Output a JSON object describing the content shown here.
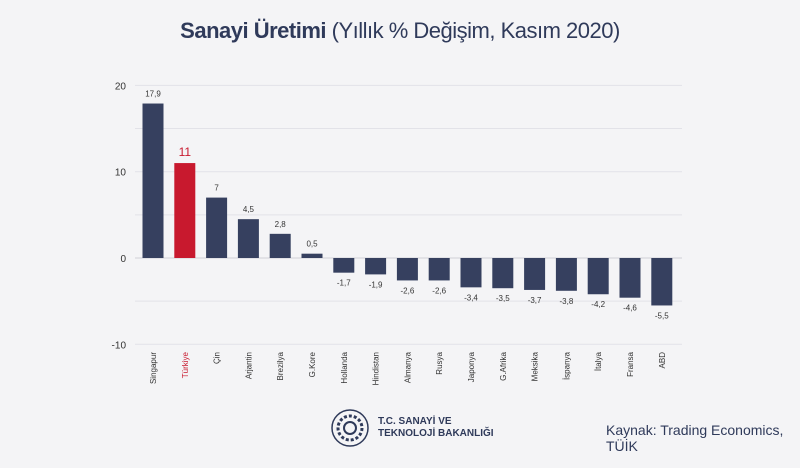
{
  "chart_data": {
    "type": "bar",
    "title": "Sanayi Üretimi",
    "subtitle": "(Yıllık % Değişim, Kasım 2020)",
    "categories": [
      "Singapur",
      "Türkiye",
      "Çin",
      "Arjantin",
      "Brezilya",
      "G.Kore",
      "Hollanda",
      "Hindistan",
      "Almanya",
      "Rusya",
      "Japonya",
      "G.Afrika",
      "Meksika",
      "İspanya",
      "İtalya",
      "Fransa",
      "ABD"
    ],
    "values": [
      17.9,
      11,
      7,
      4.5,
      2.8,
      0.5,
      -1.7,
      -1.9,
      -2.6,
      -2.6,
      -3.4,
      -3.5,
      -3.7,
      -3.8,
      -4.2,
      -4.6,
      -5.5
    ],
    "labels": [
      "17,9",
      "11",
      "7",
      "4,5",
      "2,8",
      "0,5",
      "-1,7",
      "-1,9",
      "-2,6",
      "-2,6",
      "-3,4",
      "-3,5",
      "-3,7",
      "-3,8",
      "-4,2",
      "-4,6",
      "-5,5"
    ],
    "highlight": "Türkiye",
    "yticks": [
      20,
      10,
      0,
      -10
    ],
    "ylim": [
      -10,
      20
    ],
    "grid": true,
    "colors": {
      "bar": "#36405f",
      "highlight": "#c8192e"
    }
  },
  "footer": {
    "org_line1": "T.C. SANAYİ VE",
    "org_line2": "TEKNOLOJİ BAKANLIĞI",
    "source": "Kaynak: Trading Economics, TÜİK"
  }
}
